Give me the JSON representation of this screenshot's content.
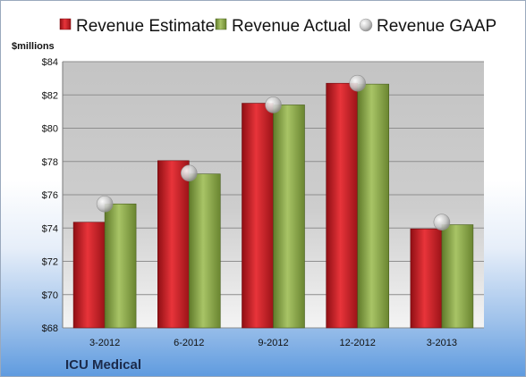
{
  "chart_data": {
    "type": "bar",
    "ylabel": "$millions",
    "company": "ICU Medical",
    "categories": [
      "3-2012",
      "6-2012",
      "9-2012",
      "12-2012",
      "3-2013"
    ],
    "ylim": [
      68,
      84
    ],
    "yticks": [
      "$68",
      "$70",
      "$72",
      "$74",
      "$76",
      "$78",
      "$80",
      "$82",
      "$84"
    ],
    "grid": true,
    "legend": "top",
    "series": [
      {
        "name": "Revenue Estimate",
        "kind": "bar",
        "color": "#cc2127",
        "values": [
          74.35,
          78.05,
          81.5,
          82.7,
          73.95
        ]
      },
      {
        "name": "Revenue Actual",
        "kind": "bar",
        "color": "#8faa4c",
        "values": [
          75.45,
          77.25,
          81.4,
          82.65,
          74.2
        ]
      },
      {
        "name": "Revenue GAAP",
        "kind": "marker",
        "color": "#b9b9b9",
        "values": [
          75.45,
          77.3,
          81.4,
          82.7,
          74.35
        ]
      }
    ]
  }
}
